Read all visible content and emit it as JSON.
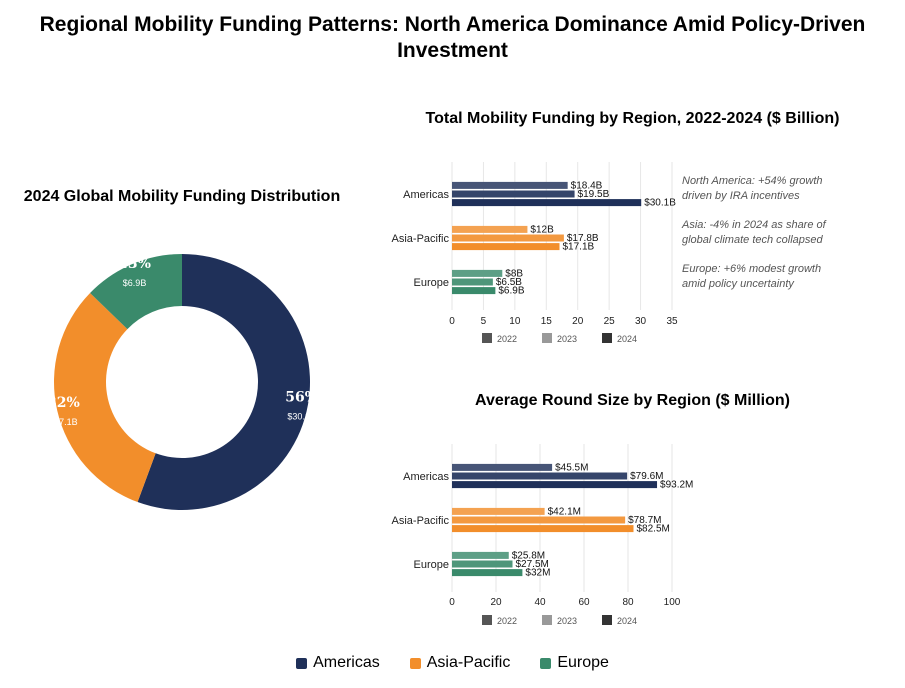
{
  "title": "Regional Mobility Funding Patterns: North America Dominance Amid Policy-Driven Investment",
  "colors": {
    "Americas": "#1f3059",
    "Asia-Pacific": "#f28e2b",
    "Europe": "#3a8a6b"
  },
  "legend": [
    "Americas",
    "Asia-Pacific",
    "Europe"
  ],
  "chart_data": [
    {
      "type": "pie",
      "title": "2024 Global Mobility Funding Distribution",
      "categories": [
        "Americas",
        "Asia-Pacific",
        "Europe"
      ],
      "values": [
        30.1,
        17.1,
        6.9
      ],
      "percent_labels": [
        "56%",
        "32%",
        "13%"
      ],
      "value_labels": [
        "$30.1B",
        "$17.1B",
        "$6.9B"
      ]
    },
    {
      "type": "bar",
      "orientation": "horizontal",
      "title": "Total Mobility Funding by Region, 2022-2024 ($ Billion)",
      "categories": [
        "Americas",
        "Asia-Pacific",
        "Europe"
      ],
      "series": [
        {
          "name": "2022",
          "values": [
            18.4,
            12,
            8
          ],
          "labels": [
            "$18.4B",
            "$12B",
            "$8B"
          ]
        },
        {
          "name": "2023",
          "values": [
            19.5,
            17.8,
            6.5
          ],
          "labels": [
            "$19.5B",
            "$17.8B",
            "$6.5B"
          ]
        },
        {
          "name": "2024",
          "values": [
            30.1,
            17.1,
            6.9
          ],
          "labels": [
            "$30.1B",
            "$17.1B",
            "$6.9B"
          ]
        }
      ],
      "xlim": [
        0,
        35
      ],
      "xticks": [
        0,
        5,
        10,
        15,
        20,
        25,
        30,
        35
      ],
      "grid": true,
      "annotations": [
        [
          "North America: +54% growth",
          "driven by IRA incentives"
        ],
        [
          "Asia: -4% in 2024 as share of",
          "global climate tech collapsed"
        ],
        [
          "Europe: +6% modest growth",
          "amid policy uncertainty"
        ]
      ]
    },
    {
      "type": "bar",
      "orientation": "horizontal",
      "title": "Average Round Size by Region ($ Million)",
      "categories": [
        "Americas",
        "Asia-Pacific",
        "Europe"
      ],
      "series": [
        {
          "name": "2022",
          "values": [
            45.5,
            42.1,
            25.8
          ],
          "labels": [
            "$45.5M",
            "$42.1M",
            "$25.8M"
          ]
        },
        {
          "name": "2023",
          "values": [
            79.6,
            78.7,
            27.5
          ],
          "labels": [
            "$79.6M",
            "$78.7M",
            "$27.5M"
          ]
        },
        {
          "name": "2024",
          "values": [
            93.2,
            82.5,
            32
          ],
          "labels": [
            "$93.2M",
            "$82.5M",
            "$32M"
          ]
        }
      ],
      "xlim": [
        0,
        100
      ],
      "xticks": [
        0,
        20,
        40,
        60,
        80,
        100
      ],
      "grid": true
    }
  ]
}
